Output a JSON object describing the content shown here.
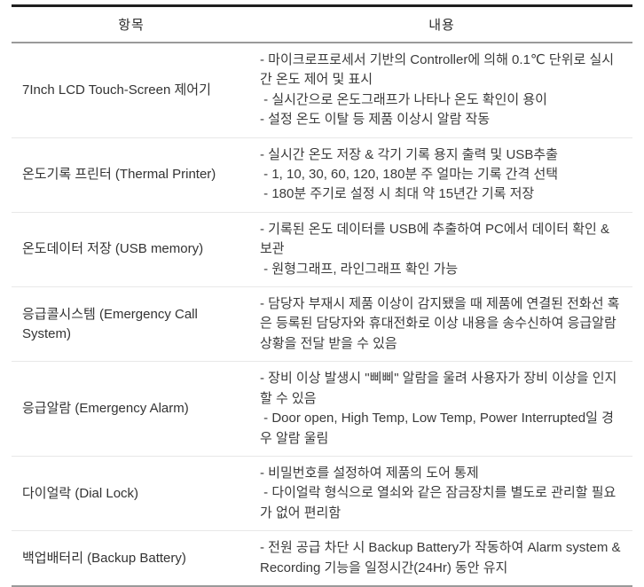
{
  "table": {
    "headers": {
      "item": "항목",
      "content": "내용"
    },
    "rows": [
      {
        "item": "7Inch LCD Touch-Screen 제어기",
        "content": "- 마이크로프로세서 기반의 Controller에 의해 0.1℃ 단위로 실시간 온도 제어 및 표시\n - 실시간으로 온도그래프가 나타나 온도 확인이 용이\n- 설정 온도 이탈 등 제품 이상시 알람 작동"
      },
      {
        "item": "온도기록 프린터 (Thermal Printer)",
        "content": "- 실시간 온도 저장 & 각기 기록 용지 출력 및 USB추출\n - 1, 10, 30, 60, 120, 180분 주 얼마는 기록 간격 선택\n - 180분 주기로 설정 시 최대 약 15년간 기록 저장"
      },
      {
        "item": "온도데이터 저장 (USB memory)",
        "content": "- 기록된 온도 데이터를 USB에 추출하여 PC에서 데이터 확인 & 보관\n - 원형그래프, 라인그래프 확인 가능"
      },
      {
        "item": "응급콜시스템 (Emergency Call System)",
        "content": "- 담당자 부재시 제품 이상이 감지됐을 때 제품에 연결된 전화선 혹은 등록된 담당자와 휴대전화로 이상 내용을 송수신하여 응급알람상황을 전달 받을 수 있음"
      },
      {
        "item": "응급알람 (Emergency Alarm)",
        "content": "- 장비 이상 발생시 \"삐삐\" 알람을 울려 사용자가 장비 이상을 인지할 수 있음\n - Door open, High Temp, Low Temp, Power Interrupted일 경우 알람 울림"
      },
      {
        "item": "다이얼락 (Dial Lock)",
        "content": "- 비밀번호를 설정하여 제품의 도어 통제\n - 다이얼락 형식으로 열쇠와 같은 잠금장치를 별도로 관리할 필요가 없어 편리함"
      },
      {
        "item": "백업배터리 (Backup Battery)",
        "content": "- 전원 공급 차단 시 Backup Battery가 작동하여 Alarm system & Recording 기능을 일정시간(24Hr) 동안 유지"
      }
    ]
  },
  "colors": {
    "border_top": "#1f1f1f",
    "border_heavy": "#9a9a9a",
    "row_divider": "#e8e8e8",
    "text": "#333333",
    "background": "#ffffff"
  }
}
